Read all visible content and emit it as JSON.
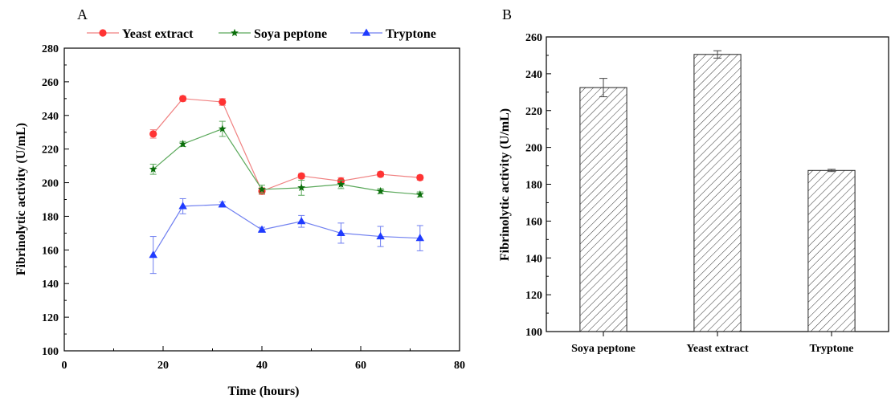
{
  "chart_data": [
    {
      "panel": "A",
      "type": "line",
      "xlabel": "Time (hours)",
      "ylabel": "Fibrinolytic activity (U/mL)",
      "xlim": [
        0,
        80
      ],
      "ylim": [
        100,
        280
      ],
      "xticks": [
        0,
        20,
        40,
        60,
        80
      ],
      "yticks": [
        100,
        120,
        140,
        160,
        180,
        200,
        220,
        240,
        260,
        280
      ],
      "grid": false,
      "legend_position": "top",
      "x": [
        18,
        24,
        32,
        40,
        48,
        56,
        64,
        72
      ],
      "series": [
        {
          "name": "Yeast extract",
          "marker": "circle",
          "color": "#ff3333",
          "line_color": "#f08080",
          "values": [
            229,
            250,
            248,
            195,
            204,
            201,
            205,
            203
          ],
          "errors": [
            2.5,
            1.5,
            2,
            2,
            1.5,
            2,
            1.5,
            1.5
          ]
        },
        {
          "name": "Soya peptone",
          "marker": "star",
          "color": "#0a6e0a",
          "line_color": "#5aa85a",
          "values": [
            208,
            223,
            232,
            196,
            197,
            199,
            195,
            193
          ],
          "errors": [
            3,
            1.5,
            4.5,
            2.5,
            4.5,
            2.5,
            1.5,
            1.5
          ]
        },
        {
          "name": "Tryptone",
          "marker": "triangle",
          "color": "#1f3bff",
          "line_color": "#6f7ff0",
          "values": [
            157,
            186,
            187,
            172,
            177,
            170,
            168,
            167
          ],
          "errors": [
            11,
            4.5,
            1.5,
            1.5,
            3.5,
            6,
            6,
            7.5
          ]
        }
      ]
    },
    {
      "panel": "B",
      "type": "bar",
      "xlabel": "",
      "ylabel": "Fibrinolytic activity (U/mL)",
      "ylim": [
        100,
        260
      ],
      "yticks": [
        100,
        120,
        140,
        160,
        180,
        200,
        220,
        240,
        260
      ],
      "grid": false,
      "categories": [
        "Soya peptone",
        "Yeast extract",
        "Tryptone"
      ],
      "values": [
        232.5,
        250.5,
        187.5
      ],
      "errors": [
        5,
        2,
        0.6
      ],
      "fill": "hatched"
    }
  ]
}
